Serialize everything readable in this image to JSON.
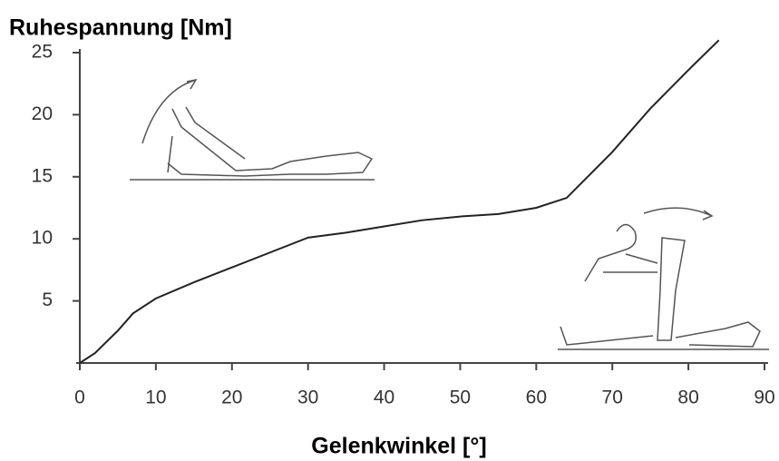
{
  "chart_data": {
    "type": "line",
    "title": "Ruhespannung [Nm]",
    "x_label": "Gelenkwinkel [°]",
    "x": [
      0,
      2,
      5,
      7,
      10,
      15,
      20,
      25,
      30,
      35,
      40,
      45,
      50,
      55,
      60,
      64,
      70,
      75,
      80,
      84
    ],
    "series": [
      {
        "color": "#222222",
        "values": [
          0,
          0.8,
          2.6,
          4.0,
          5.2,
          6.5,
          7.7,
          8.9,
          10.1,
          10.5,
          11.0,
          11.5,
          11.8,
          12.0,
          12.5,
          13.3,
          17.0,
          20.5,
          23.6,
          26.0
        ]
      }
    ],
    "xlim": [
      0,
      90
    ],
    "xticks": [
      0,
      10,
      20,
      30,
      40,
      50,
      60,
      70,
      80,
      90
    ],
    "ylim": [
      0,
      25
    ],
    "yticks": [
      5,
      10,
      15,
      20,
      25
    ],
    "grid": false
  }
}
